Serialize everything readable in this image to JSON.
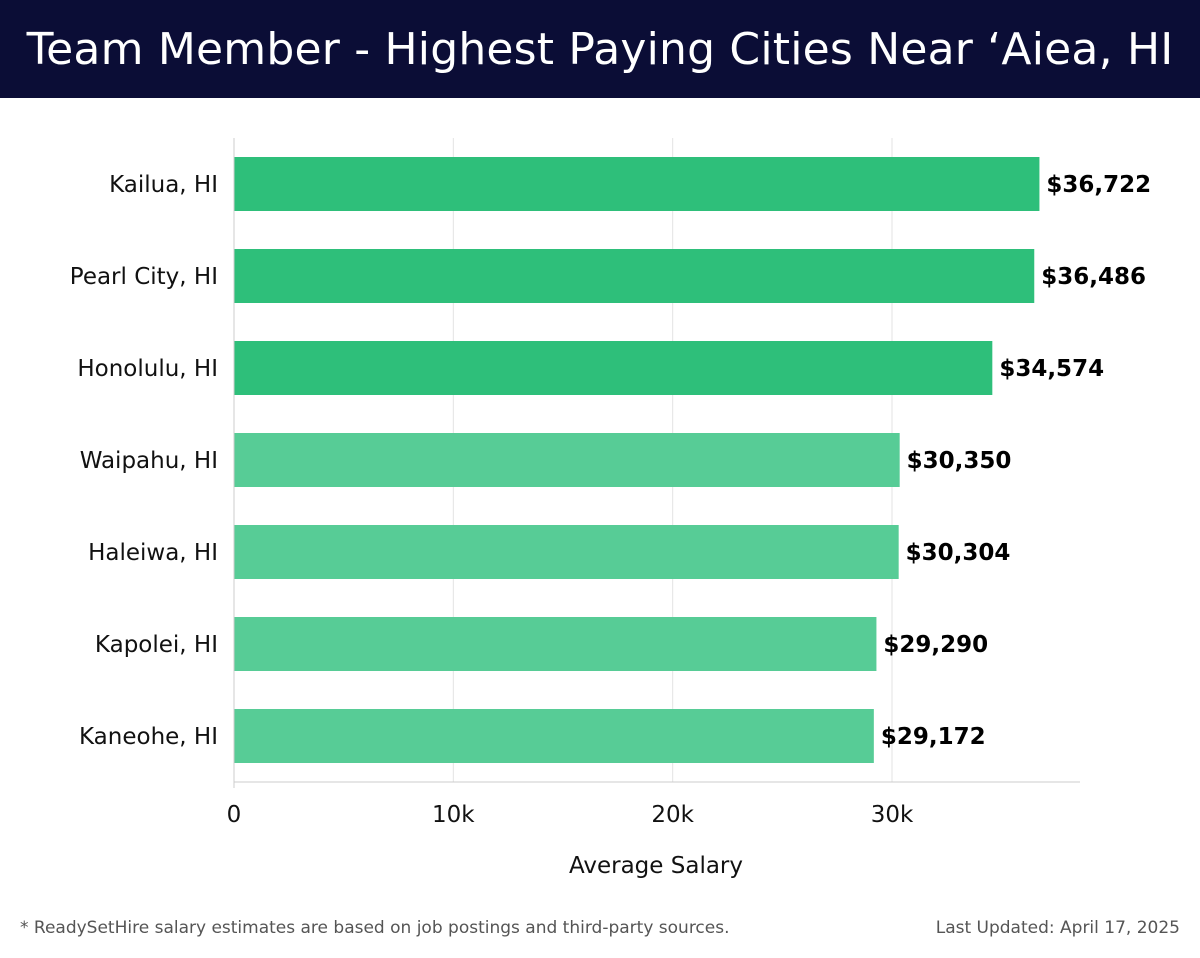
{
  "header": {
    "title": "Team Member - Highest Paying Cities Near ‘Aiea, HI"
  },
  "footer": {
    "note": "* ReadySetHire salary estimates are based on job postings and third-party sources.",
    "updated": "Last Updated: April 17, 2025"
  },
  "colors": {
    "header_bg": "#0b0d36",
    "bar_top": "#2ebf7a",
    "bar_rest": "#57cc96"
  },
  "chart_data": {
    "type": "bar",
    "orientation": "horizontal",
    "categories": [
      "Kailua, HI",
      "Pearl City, HI",
      "Honolulu, HI",
      "Waipahu, HI",
      "Haleiwa, HI",
      "Kapolei, HI",
      "Kaneohe, HI"
    ],
    "values": [
      36722,
      36486,
      34574,
      30350,
      30304,
      29290,
      29172
    ],
    "value_labels": [
      "$36,722",
      "$36,486",
      "$34,574",
      "$30,350",
      "$30,304",
      "$29,290",
      "$29,172"
    ],
    "xlabel": "Average Salary",
    "ylabel": "",
    "xlim": [
      0,
      38800
    ],
    "xticks": [
      0,
      10000,
      20000,
      30000
    ],
    "xtick_labels": [
      "0",
      "10k",
      "20k",
      "30k"
    ],
    "grid": true,
    "highlight_top_n": 3
  }
}
